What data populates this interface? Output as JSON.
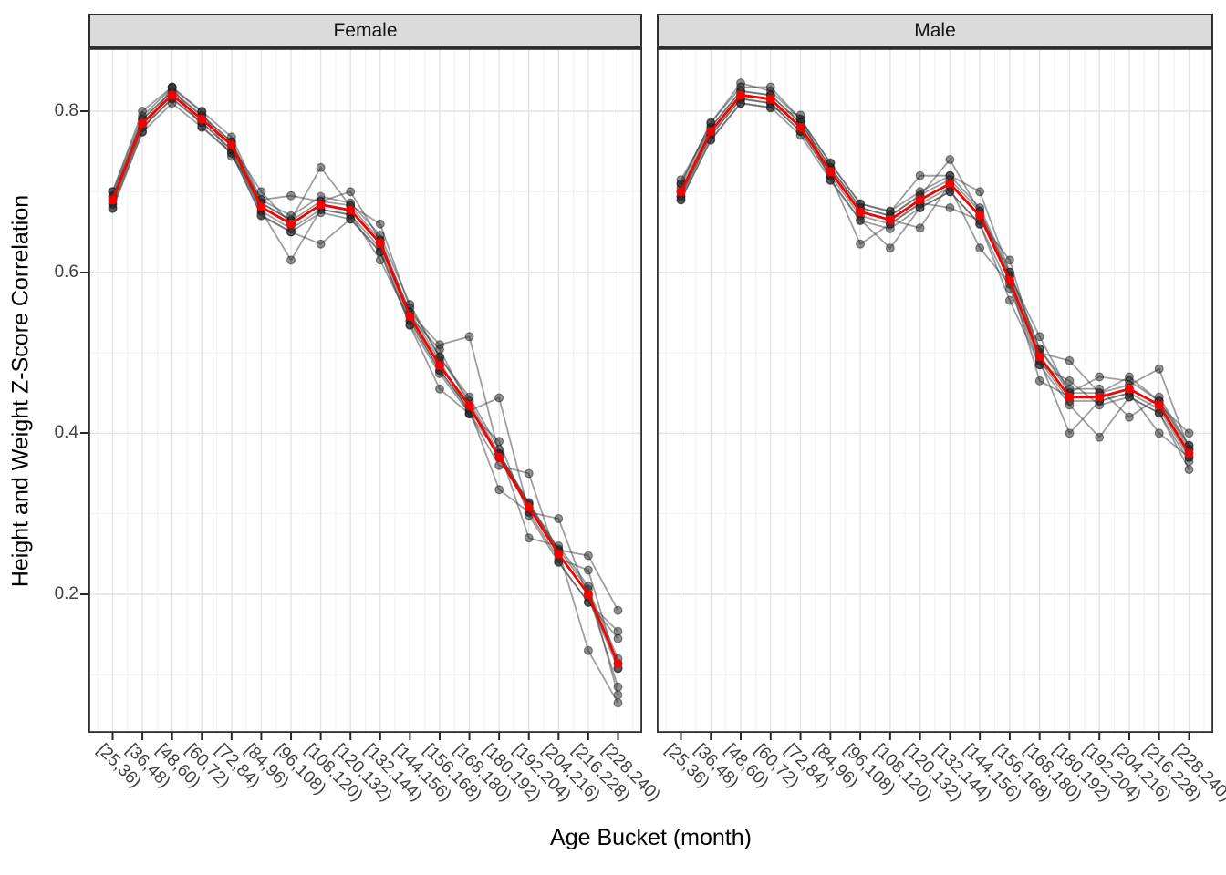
{
  "figure": {
    "y_axis_title": "Height and Weight Z-Score Correlation",
    "x_axis_title": "Age Bucket (month)",
    "y_tick_labels": [
      "0.2",
      "0.4",
      "0.6",
      "0.8"
    ]
  },
  "chart_data": {
    "type": "line",
    "title": "",
    "xlabel": "Age Bucket (month)",
    "ylabel": "Height and Weight Z-Score Correlation",
    "legend_position": "none",
    "grid": true,
    "facet_labels": [
      "Female",
      "Male"
    ],
    "categories": [
      "[25,36)",
      "[36,48)",
      "[48,60)",
      "[60,72)",
      "[72,84)",
      "[84,96)",
      "[96,108)",
      "[108,120)",
      "[120,132)",
      "[132,144)",
      "[144,156)",
      "[156,168)",
      "[168,180)",
      "[180,192)",
      "[192,204)",
      "[204,216)",
      "[216,228)",
      "[228,240)"
    ],
    "y_axis": {
      "major_ticks": [
        0.2,
        0.4,
        0.6,
        0.8
      ],
      "minor_gridlines": [
        0.1,
        0.3,
        0.5,
        0.7
      ],
      "range": [
        0.028,
        0.878
      ]
    },
    "colors": {
      "mean_line": "#F80000",
      "replicate_line": "#404040",
      "replicate_point": "#262626",
      "replicate_opacity": 0.5,
      "strip_background": "#DBDBDB",
      "grid_major": "#E4E4E4",
      "grid_minor": "#F1F1F1",
      "panel_border": "#2E2E2E"
    },
    "facets": [
      {
        "label": "Female",
        "mean": [
          0.69,
          0.785,
          0.82,
          0.79,
          0.758,
          0.681,
          0.66,
          0.684,
          0.677,
          0.636,
          0.545,
          0.484,
          0.434,
          0.37,
          0.308,
          0.25,
          0.2,
          0.114
        ],
        "replicates": [
          [
            0.695,
            0.79,
            0.825,
            0.795,
            0.762,
            0.686,
            0.665,
            0.73,
            0.682,
            0.64,
            0.55,
            0.51,
            0.52,
            0.375,
            0.312,
            0.255,
            0.248,
            0.18
          ],
          [
            0.7,
            0.8,
            0.83,
            0.8,
            0.768,
            0.69,
            0.695,
            0.688,
            0.683,
            0.66,
            0.556,
            0.495,
            0.44,
            0.374,
            0.314,
            0.256,
            0.206,
            0.12
          ],
          [
            0.684,
            0.78,
            0.815,
            0.786,
            0.752,
            0.676,
            0.615,
            0.678,
            0.671,
            0.63,
            0.54,
            0.478,
            0.428,
            0.444,
            0.302,
            0.244,
            0.23,
            0.108
          ],
          [
            0.679,
            0.774,
            0.81,
            0.78,
            0.748,
            0.67,
            0.65,
            0.635,
            0.666,
            0.625,
            0.534,
            0.455,
            0.424,
            0.36,
            0.35,
            0.24,
            0.19,
            0.154
          ],
          [
            0.694,
            0.79,
            0.824,
            0.794,
            0.762,
            0.686,
            0.664,
            0.688,
            0.7,
            0.64,
            0.55,
            0.49,
            0.424,
            0.374,
            0.312,
            0.254,
            0.13,
            0.065
          ],
          [
            0.686,
            0.78,
            0.816,
            0.786,
            0.752,
            0.676,
            0.654,
            0.678,
            0.672,
            0.615,
            0.54,
            0.478,
            0.43,
            0.33,
            0.302,
            0.294,
            0.196,
            0.108
          ],
          [
            0.69,
            0.785,
            0.82,
            0.79,
            0.757,
            0.7,
            0.66,
            0.684,
            0.676,
            0.636,
            0.545,
            0.504,
            0.434,
            0.37,
            0.308,
            0.25,
            0.2,
            0.085
          ],
          [
            0.68,
            0.775,
            0.83,
            0.781,
            0.748,
            0.671,
            0.65,
            0.674,
            0.666,
            0.626,
            0.535,
            0.474,
            0.425,
            0.39,
            0.298,
            0.24,
            0.19,
            0.145
          ],
          [
            0.7,
            0.794,
            0.829,
            0.799,
            0.744,
            0.69,
            0.67,
            0.694,
            0.686,
            0.646,
            0.56,
            0.494,
            0.445,
            0.38,
            0.27,
            0.26,
            0.21,
            0.075
          ]
        ]
      },
      {
        "label": "Male",
        "mean": [
          0.7,
          0.775,
          0.82,
          0.815,
          0.78,
          0.725,
          0.675,
          0.665,
          0.69,
          0.71,
          0.67,
          0.59,
          0.495,
          0.445,
          0.445,
          0.455,
          0.435,
          0.375
        ],
        "replicates": [
          [
            0.705,
            0.78,
            0.825,
            0.82,
            0.785,
            0.73,
            0.68,
            0.67,
            0.695,
            0.74,
            0.675,
            0.595,
            0.5,
            0.49,
            0.45,
            0.46,
            0.48,
            0.38
          ],
          [
            0.71,
            0.785,
            0.835,
            0.825,
            0.79,
            0.735,
            0.685,
            0.675,
            0.72,
            0.72,
            0.68,
            0.6,
            0.505,
            0.45,
            0.47,
            0.465,
            0.44,
            0.385
          ],
          [
            0.694,
            0.77,
            0.815,
            0.81,
            0.775,
            0.72,
            0.635,
            0.66,
            0.685,
            0.705,
            0.63,
            0.585,
            0.49,
            0.4,
            0.44,
            0.45,
            0.43,
            0.37
          ],
          [
            0.69,
            0.765,
            0.81,
            0.805,
            0.77,
            0.715,
            0.665,
            0.63,
            0.68,
            0.7,
            0.66,
            0.58,
            0.485,
            0.435,
            0.395,
            0.445,
            0.425,
            0.355
          ],
          [
            0.715,
            0.78,
            0.825,
            0.82,
            0.786,
            0.73,
            0.68,
            0.67,
            0.696,
            0.715,
            0.676,
            0.596,
            0.52,
            0.45,
            0.45,
            0.47,
            0.44,
            0.38
          ],
          [
            0.695,
            0.77,
            0.816,
            0.81,
            0.775,
            0.72,
            0.67,
            0.66,
            0.686,
            0.68,
            0.664,
            0.615,
            0.49,
            0.44,
            0.44,
            0.45,
            0.4,
            0.37
          ],
          [
            0.7,
            0.775,
            0.82,
            0.815,
            0.78,
            0.725,
            0.675,
            0.665,
            0.655,
            0.71,
            0.67,
            0.59,
            0.465,
            0.445,
            0.445,
            0.455,
            0.435,
            0.4
          ],
          [
            0.71,
            0.786,
            0.83,
            0.83,
            0.79,
            0.736,
            0.685,
            0.676,
            0.7,
            0.72,
            0.7,
            0.6,
            0.505,
            0.455,
            0.455,
            0.42,
            0.445,
            0.385
          ],
          [
            0.69,
            0.764,
            0.81,
            0.804,
            0.795,
            0.714,
            0.664,
            0.654,
            0.68,
            0.7,
            0.66,
            0.565,
            0.485,
            0.465,
            0.435,
            0.445,
            0.425,
            0.365
          ]
        ]
      }
    ]
  }
}
